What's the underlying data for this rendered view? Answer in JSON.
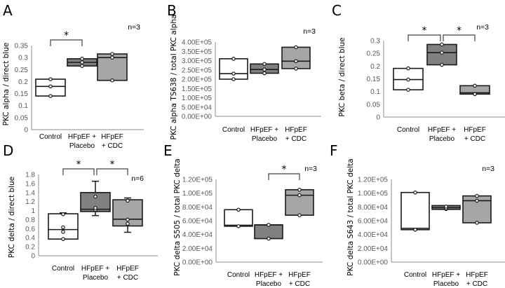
{
  "figure": {
    "group_colors": {
      "Control": "#ffffff",
      "HFpEF + Placebo": "#808080",
      "HFpEF + CDC": "#a6a6a6"
    },
    "stroke_color": "#1a1a1a",
    "axis_color": "#8c8c8c",
    "tick_color": "#595959"
  },
  "chart_data": [
    {
      "panel": "A",
      "type": "box",
      "title": "",
      "ylabel": "PKC alpha / direct blue",
      "xlabel": "",
      "n_label": "n=3",
      "categories": [
        [
          "Control"
        ],
        [
          "HFpEF +",
          "Placebo"
        ],
        [
          "HFpEF",
          "+ CDC"
        ]
      ],
      "ylim": [
        0,
        0.35
      ],
      "yticks": [
        0,
        0.05,
        0.1,
        0.15,
        0.2,
        0.25,
        0.3,
        0.35
      ],
      "ytick_labels": [
        "0",
        "0.05",
        "0.1",
        "0.15",
        "0.2",
        "0.25",
        "0.3",
        "0.35"
      ],
      "series": [
        {
          "name": "Control",
          "q1": 0.14,
          "median": 0.18,
          "q3": 0.21,
          "points": [
            0.14,
            0.18,
            0.21
          ]
        },
        {
          "name": "HFpEF + Placebo",
          "q1": 0.265,
          "median": 0.28,
          "q3": 0.295,
          "points": [
            0.265,
            0.28,
            0.295
          ]
        },
        {
          "name": "HFpEF + CDC",
          "q1": 0.205,
          "median": 0.3,
          "q3": 0.315,
          "points": [
            0.205,
            0.3,
            0.315
          ]
        }
      ],
      "significance": [
        {
          "from": 0,
          "to": 1,
          "label": "*"
        }
      ]
    },
    {
      "panel": "B",
      "type": "box",
      "title": "",
      "ylabel": "PKC alpha TS638 / total PKC alpha",
      "xlabel": "",
      "n_label": "n=3",
      "categories": [
        [
          "Control"
        ],
        [
          "HFpEF +",
          "Placebo"
        ],
        [
          "HFpEF",
          "+ CDC"
        ]
      ],
      "ylim": [
        0,
        400000
      ],
      "yticks": [
        0,
        50000,
        100000,
        150000,
        200000,
        250000,
        300000,
        350000,
        400000
      ],
      "ytick_labels": [
        "0.00E+00",
        "5.00E+04",
        "1.00E+05",
        "1.50E+05",
        "2.00E+05",
        "2.50E+05",
        "3.00E+05",
        "3.50E+05",
        "4.00E+05"
      ],
      "series": [
        {
          "name": "Control",
          "q1": 200000,
          "median": 230000,
          "q3": 310000,
          "points": [
            200000,
            230000,
            310000
          ]
        },
        {
          "name": "HFpEF + Placebo",
          "q1": 232000,
          "median": 252000,
          "q3": 282000,
          "points": [
            232000,
            252000,
            282000
          ]
        },
        {
          "name": "HFpEF + CDC",
          "q1": 257000,
          "median": 297000,
          "q3": 372000,
          "points": [
            257000,
            297000,
            372000
          ]
        }
      ],
      "significance": []
    },
    {
      "panel": "C",
      "type": "box",
      "title": "",
      "ylabel": "PKC beta / direct blue",
      "xlabel": "",
      "n_label": "n=3",
      "categories": [
        [
          "Control"
        ],
        [
          "HFpEF +",
          "Placebo"
        ],
        [
          "HFpEF",
          "+ CDC"
        ]
      ],
      "ylim": [
        0,
        0.3
      ],
      "yticks": [
        0,
        0.05,
        0.1,
        0.15,
        0.2,
        0.25,
        0.3
      ],
      "ytick_labels": [
        "0",
        "0.05",
        "0.1",
        "0.15",
        "0.2",
        "0.25",
        "0.3"
      ],
      "series": [
        {
          "name": "Control",
          "q1": 0.107,
          "median": 0.147,
          "q3": 0.191,
          "points": [
            0.107,
            0.147,
            0.191
          ]
        },
        {
          "name": "HFpEF + Placebo",
          "q1": 0.205,
          "median": 0.253,
          "q3": 0.285,
          "points": [
            0.205,
            0.253,
            0.285
          ]
        },
        {
          "name": "HFpEF + CDC",
          "q1": 0.09,
          "median": 0.095,
          "q3": 0.123,
          "points": [
            0.09,
            0.09,
            0.123
          ]
        }
      ],
      "significance": [
        {
          "from": 0,
          "to": 1,
          "label": "*"
        },
        {
          "from": 1,
          "to": 2,
          "label": "*"
        }
      ]
    },
    {
      "panel": "D",
      "type": "box",
      "title": "",
      "ylabel": "PKC delta / direct blue",
      "xlabel": "",
      "n_label": "n=6",
      "categories": [
        [
          "Control"
        ],
        [
          "HFpEF +",
          "Placebo"
        ],
        [
          "HFpEF",
          "+ CDC"
        ]
      ],
      "ylim": [
        0,
        1.8
      ],
      "yticks": [
        0,
        0.2,
        0.4,
        0.6,
        0.8,
        1.0,
        1.2,
        1.4,
        1.6,
        1.8
      ],
      "ytick_labels": [
        "0",
        "0.2",
        "0.4",
        "0.6",
        "0.8",
        "1",
        "1.2",
        "1.4",
        "1.6",
        "1.8"
      ],
      "series": [
        {
          "name": "Control",
          "min": 0.37,
          "q1": 0.37,
          "median": 0.58,
          "q3": 0.93,
          "max": 0.95,
          "points": [
            0.37,
            0.53,
            0.63,
            0.92
          ]
        },
        {
          "name": "HFpEF + Placebo",
          "min": 0.89,
          "q1": 0.98,
          "median": 1.03,
          "q3": 1.4,
          "max": 1.65,
          "points": [
            1.02,
            1.06,
            1.31
          ]
        },
        {
          "name": "HFpEF + CDC",
          "min": 0.52,
          "q1": 0.66,
          "median": 0.81,
          "q3": 1.24,
          "max": 1.28,
          "points": [
            0.71,
            0.8,
            1.22
          ]
        }
      ],
      "significance": [
        {
          "from": 0,
          "to": 1,
          "label": "*"
        },
        {
          "from": 1,
          "to": 2,
          "label": "*"
        }
      ]
    },
    {
      "panel": "E",
      "type": "box",
      "title": "",
      "ylabel": "PKC delta S505 / total PKC delta",
      "xlabel": "",
      "n_label": "n=3",
      "categories": [
        [
          "Control"
        ],
        [
          "HFpEF +",
          "Placebo"
        ],
        [
          "HFpEF",
          "+ CDC"
        ]
      ],
      "ylim": [
        0,
        120000
      ],
      "yticks": [
        0,
        20000,
        40000,
        60000,
        80000,
        100000,
        120000
      ],
      "ytick_labels": [
        "0.00E+00",
        "2.00E+04",
        "4.00E+04",
        "6.00E+04",
        "8.00E+04",
        "1.00E+05",
        "1.20E+05"
      ],
      "series": [
        {
          "name": "Control",
          "q1": 52000,
          "median": 53500,
          "q3": 76000,
          "points": [
            52000,
            76000
          ]
        },
        {
          "name": "HFpEF + Placebo",
          "q1": 34000,
          "median": 54000,
          "q3": 54000,
          "points": [
            34000,
            54000
          ]
        },
        {
          "name": "HFpEF + CDC",
          "q1": 68000,
          "median": 97000,
          "q3": 105000,
          "points": [
            68000,
            97000,
            105000
          ]
        }
      ],
      "significance": [
        {
          "from": 1,
          "to": 2,
          "label": "*"
        }
      ]
    },
    {
      "panel": "F",
      "type": "box",
      "title": "",
      "ylabel": "PKC delta S643 / total PKC delta",
      "xlabel": "",
      "n_label": "n=3",
      "categories": [
        [
          "Control"
        ],
        [
          "HFpEF +",
          "Placebo"
        ],
        [
          "HFpEF",
          "+ CDC"
        ]
      ],
      "ylim": [
        0,
        120000
      ],
      "yticks": [
        0,
        20000,
        40000,
        60000,
        80000,
        100000,
        120000
      ],
      "ytick_labels": [
        "0.00E+00",
        "2.00E+04",
        "4.00E+04",
        "6.00E+04",
        "8.00E+04",
        "1.00E+05",
        "1.20E+05"
      ],
      "series": [
        {
          "name": "Control",
          "q1": 47000,
          "median": 49000,
          "q3": 101000,
          "points": [
            47000,
            101000
          ]
        },
        {
          "name": "HFpEF + Placebo",
          "q1": 76500,
          "median": 79000,
          "q3": 82000,
          "points": [
            77000,
            78000,
            80500
          ]
        },
        {
          "name": "HFpEF + CDC",
          "q1": 57000,
          "median": 89000,
          "q3": 96000,
          "points": [
            57000,
            89000,
            96000
          ]
        }
      ],
      "significance": []
    }
  ]
}
